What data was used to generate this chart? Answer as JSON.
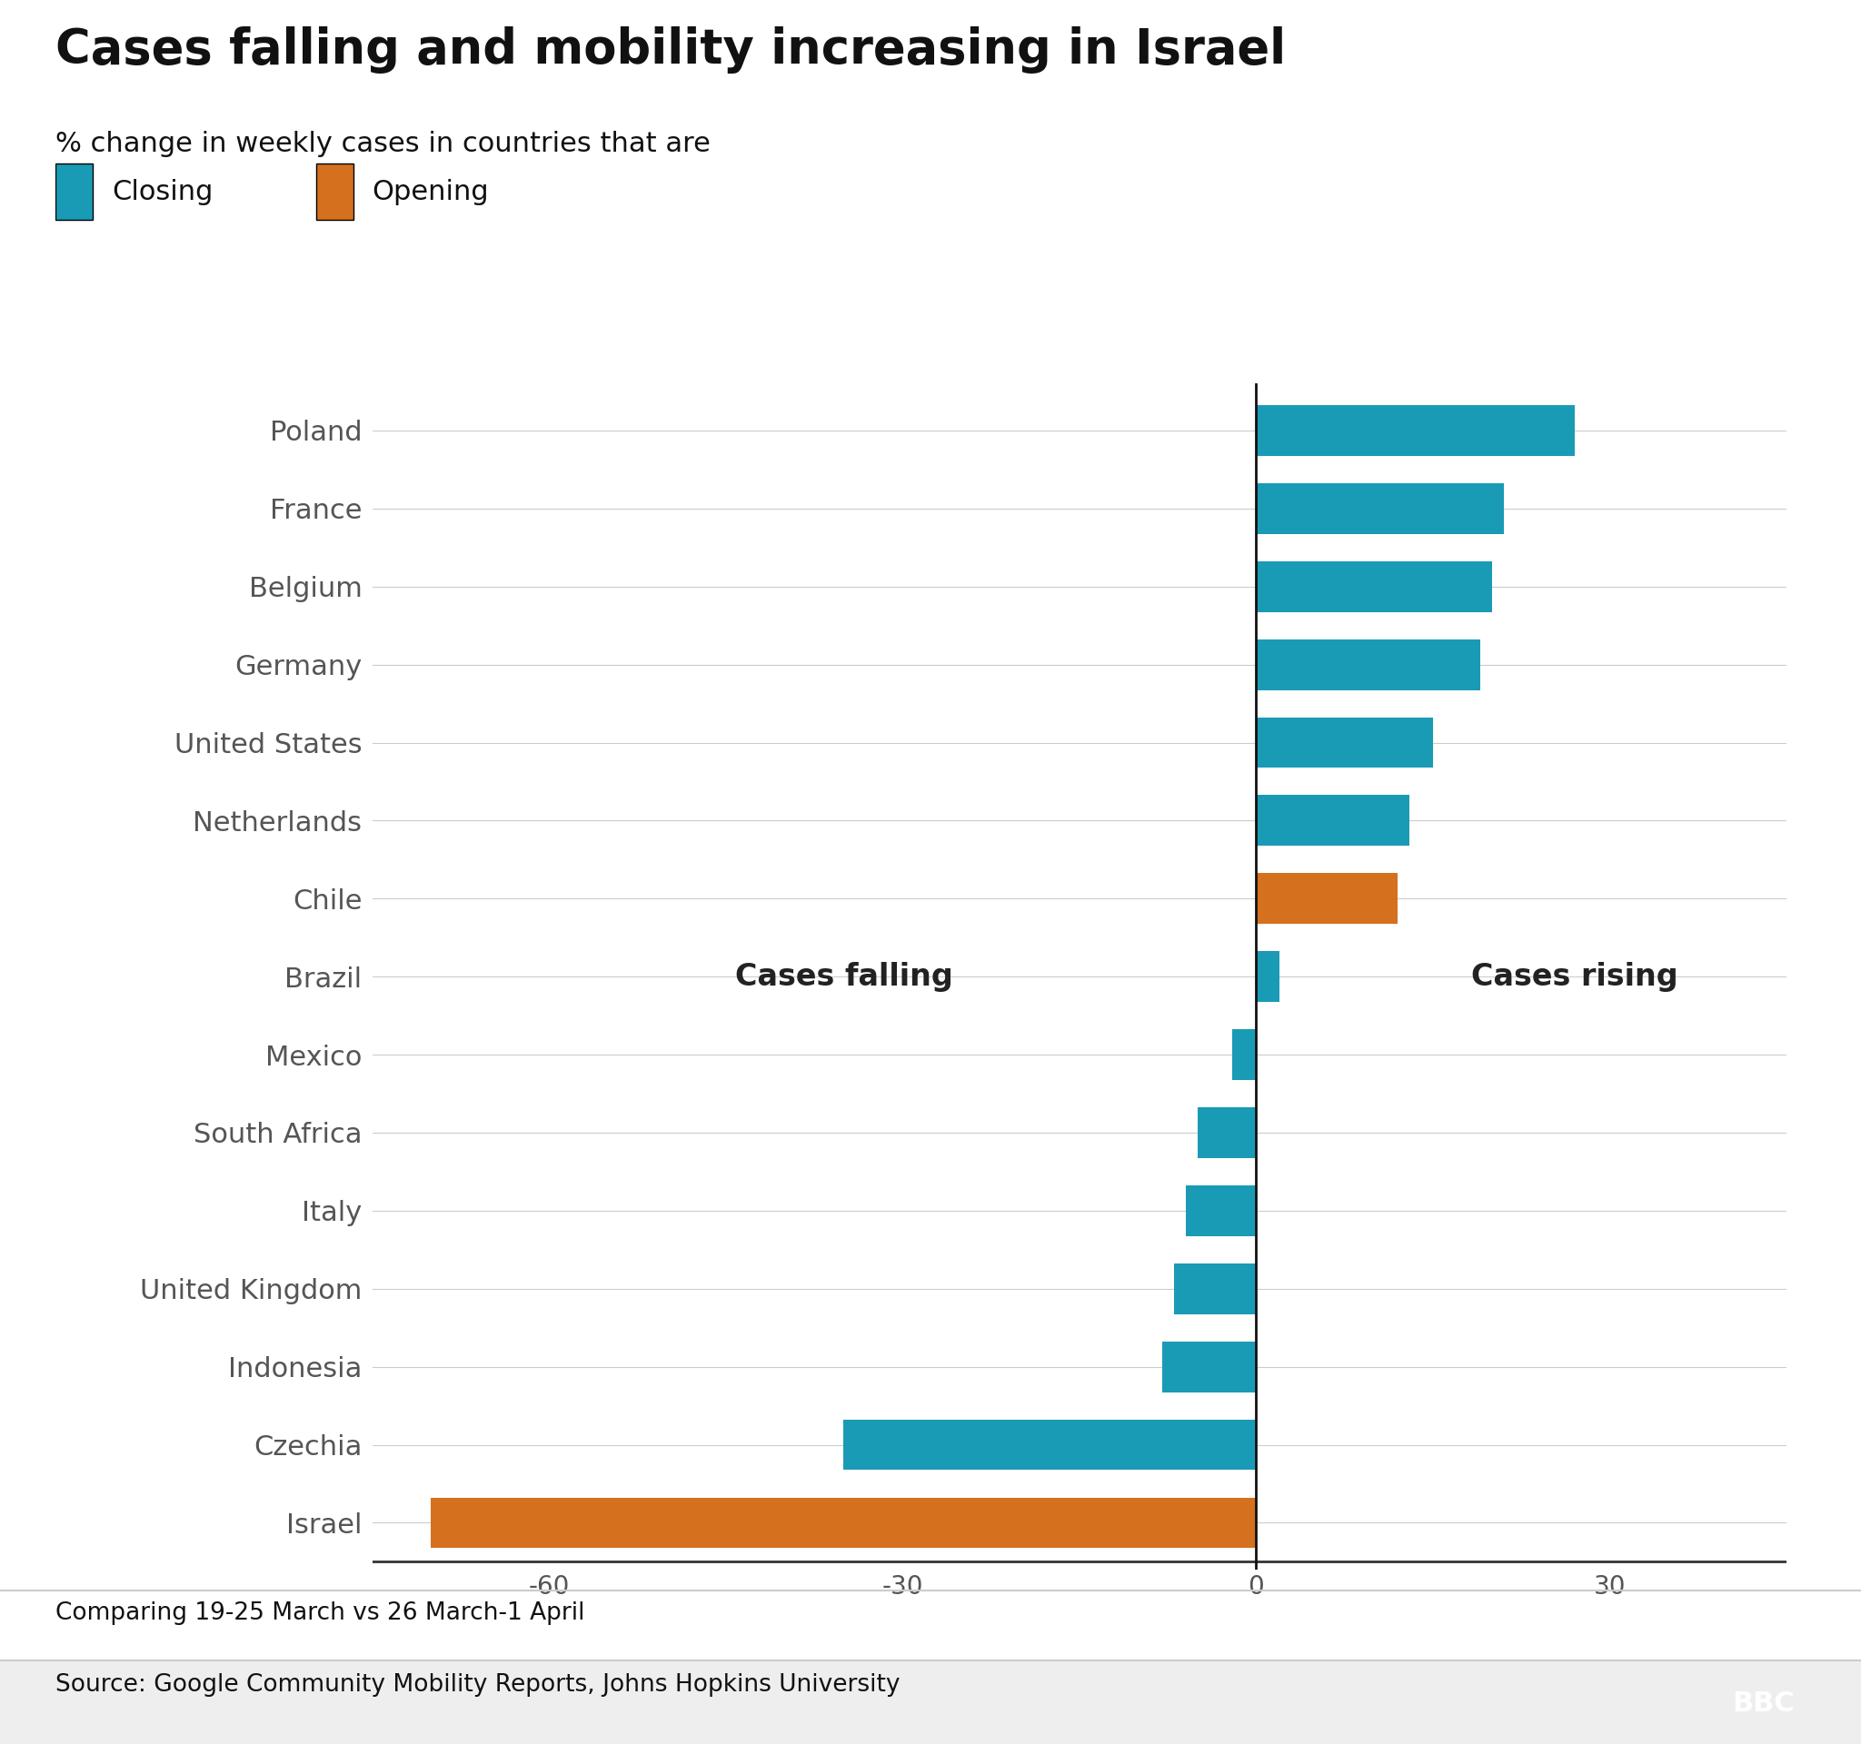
{
  "title": "Cases falling and mobility increasing in Israel",
  "subtitle": "% change in weekly cases in countries that are",
  "legend": [
    "Closing",
    "Opening"
  ],
  "legend_colors": [
    "#1a9bb5",
    "#d4701e"
  ],
  "annotation_left": "Cases falling",
  "annotation_right": "Cases rising",
  "footnote": "Comparing 19-25 March vs 26 March-1 April",
  "source": "Source: Google Community Mobility Reports, Johns Hopkins University",
  "countries": [
    "Israel",
    "Czechia",
    "Indonesia",
    "United Kingdom",
    "Italy",
    "South Africa",
    "Mexico",
    "Brazil",
    "Chile",
    "Netherlands",
    "United States",
    "Germany",
    "Belgium",
    "France",
    "Poland"
  ],
  "values": [
    -70,
    -35,
    -8,
    -7,
    -6,
    -5,
    -2,
    2,
    12,
    13,
    15,
    19,
    20,
    21,
    27
  ],
  "colors": [
    "#d4701e",
    "#1a9bb5",
    "#1a9bb5",
    "#1a9bb5",
    "#1a9bb5",
    "#1a9bb5",
    "#1a9bb5",
    "#1a9bb5",
    "#d4701e",
    "#1a9bb5",
    "#1a9bb5",
    "#1a9bb5",
    "#1a9bb5",
    "#1a9bb5",
    "#1a9bb5"
  ],
  "xlim": [
    -75,
    45
  ],
  "xticks": [
    -60,
    -30,
    0,
    30
  ],
  "bar_height": 0.65,
  "background_color": "#ffffff",
  "closing_color": "#1a9bb5",
  "opening_color": "#d4701e",
  "title_fontsize": 38,
  "subtitle_fontsize": 22,
  "tick_fontsize": 20,
  "label_fontsize": 22,
  "annotation_fontsize": 24,
  "legend_fontsize": 22,
  "footer_fontsize": 19
}
